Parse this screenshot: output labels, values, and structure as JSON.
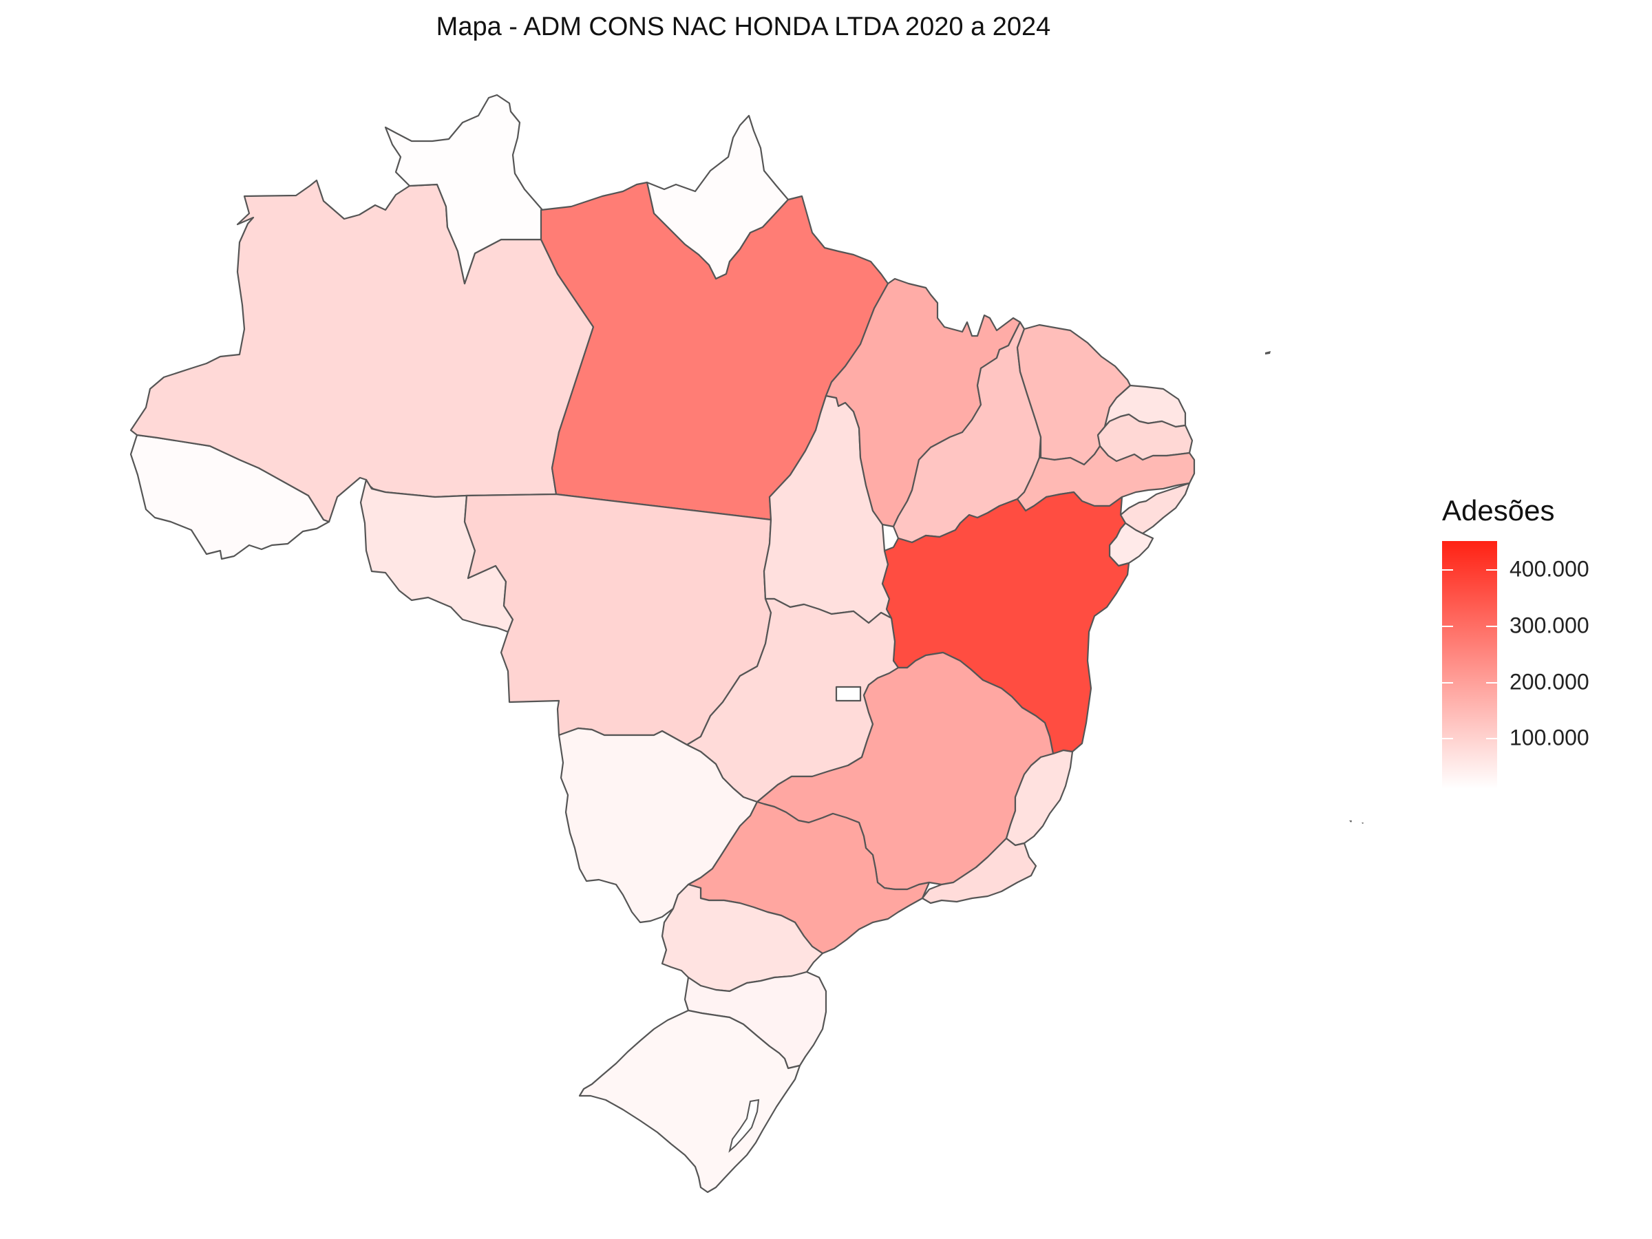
{
  "title": "Mapa - ADM CONS NAC HONDA LTDA 2020 a 2024",
  "legend": {
    "title": "Adesões",
    "min": 10000,
    "max": 450000,
    "ticks": [
      {
        "value": 100000,
        "label": "100.000"
      },
      {
        "value": 200000,
        "label": "200.000"
      },
      {
        "value": 300000,
        "label": "300.000"
      },
      {
        "value": 400000,
        "label": "400.000"
      }
    ],
    "color_low": "#ffffff",
    "color_high": "#ff2214"
  },
  "outline_color": "#555555",
  "states": [
    {
      "name": "RR",
      "value": 14000
    },
    {
      "name": "AP",
      "value": 16000
    },
    {
      "name": "AM",
      "value": 85000
    },
    {
      "name": "PA",
      "value": 268000
    },
    {
      "name": "AC",
      "value": 18000
    },
    {
      "name": "RO",
      "value": 58000
    },
    {
      "name": "MT",
      "value": 95000
    },
    {
      "name": "TO",
      "value": 72000
    },
    {
      "name": "MA",
      "value": 175000
    },
    {
      "name": "PI",
      "value": 125000
    },
    {
      "name": "CE",
      "value": 140000
    },
    {
      "name": "RN",
      "value": 60000
    },
    {
      "name": "PB",
      "value": 88000
    },
    {
      "name": "PE",
      "value": 150000
    },
    {
      "name": "AL",
      "value": 75000
    },
    {
      "name": "SE",
      "value": 52000
    },
    {
      "name": "BA",
      "value": 365000
    },
    {
      "name": "GO",
      "value": 82000
    },
    {
      "name": "DF",
      "value": 10000
    },
    {
      "name": "MS",
      "value": 30000
    },
    {
      "name": "MG",
      "value": 185000
    },
    {
      "name": "ES",
      "value": 70000
    },
    {
      "name": "RJ",
      "value": 80000
    },
    {
      "name": "SP",
      "value": 188000
    },
    {
      "name": "PR",
      "value": 66000
    },
    {
      "name": "SC",
      "value": 33000
    },
    {
      "name": "RS",
      "value": 26000
    }
  ]
}
